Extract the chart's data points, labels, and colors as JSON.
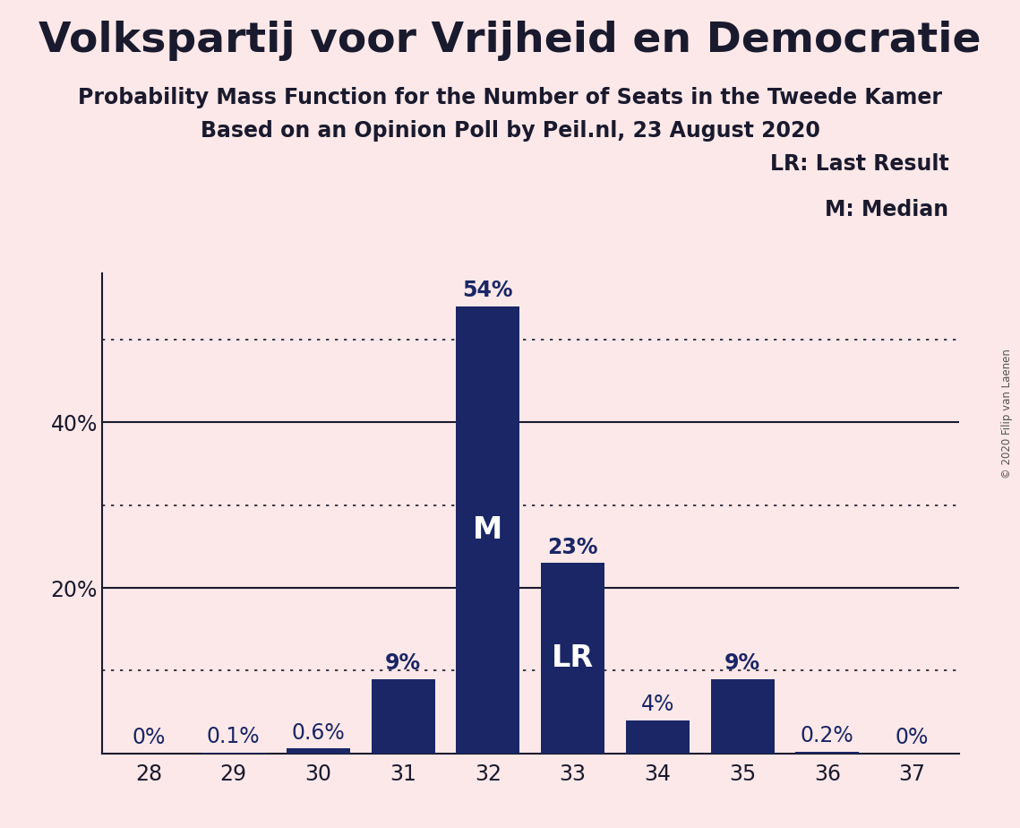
{
  "title": "Volkspartij voor Vrijheid en Democratie",
  "subtitle1": "Probability Mass Function for the Number of Seats in the Tweede Kamer",
  "subtitle2": "Based on an Opinion Poll by Peil.nl, 23 August 2020",
  "copyright": "© 2020 Filip van Laenen",
  "categories": [
    28,
    29,
    30,
    31,
    32,
    33,
    34,
    35,
    36,
    37
  ],
  "values": [
    0.0,
    0.1,
    0.6,
    9.0,
    54.0,
    23.0,
    4.0,
    9.0,
    0.2,
    0.0
  ],
  "labels": [
    "0%",
    "0.1%",
    "0.6%",
    "9%",
    "54%",
    "23%",
    "4%",
    "9%",
    "0.2%",
    "0%"
  ],
  "bar_color": "#1a2666",
  "background_color": "#fce8e8",
  "label_color_outside": "#1a2666",
  "label_color_inside": "#ffffff",
  "median_bar": 4,
  "lr_bar": 5,
  "median_label": "M",
  "lr_label": "LR",
  "legend_lr": "LR: Last Result",
  "legend_m": "M: Median",
  "ytick_positions": [
    20,
    40
  ],
  "ytick_labels": [
    "20%",
    "40%"
  ],
  "solid_gridlines": [
    20,
    40
  ],
  "dotted_gridlines": [
    10,
    30,
    50
  ],
  "ylim": [
    0,
    58
  ],
  "title_fontsize": 34,
  "subtitle_fontsize": 17,
  "bar_label_fontsize": 17,
  "axis_label_fontsize": 17,
  "legend_fontsize": 17,
  "inside_label_fontsize": 24
}
